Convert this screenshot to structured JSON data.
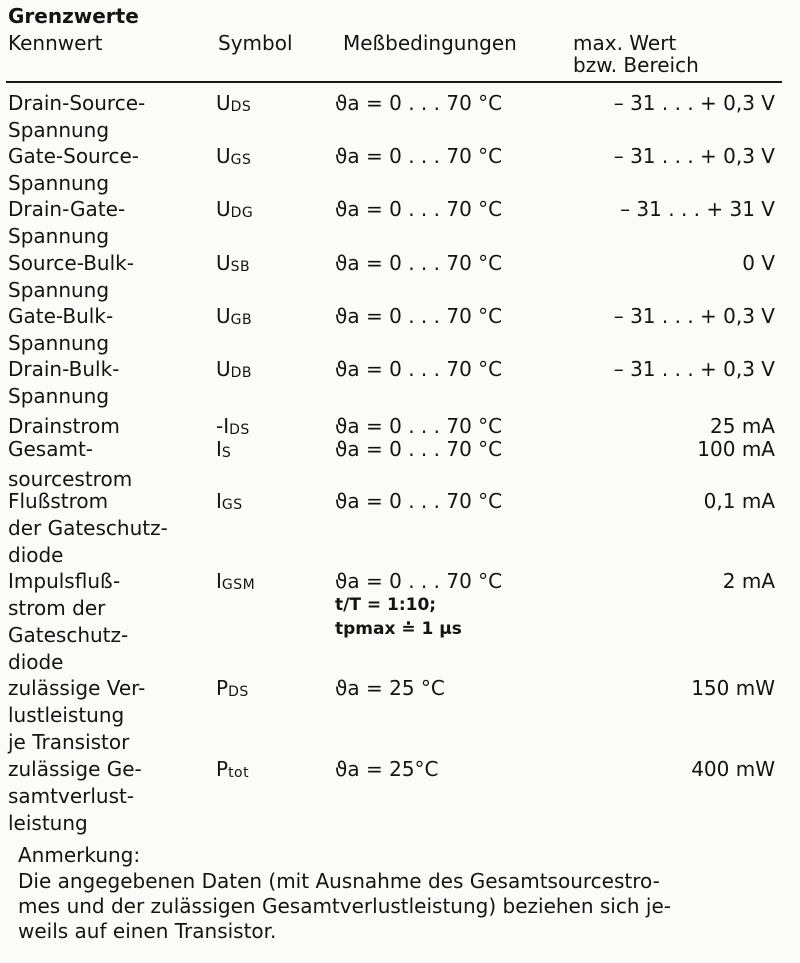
{
  "title": "Grenzwerte",
  "headers": {
    "kennwert": "Kennwert",
    "symbol": "Symbol",
    "conditions": "Meßbedingungen",
    "value_line1": "max. Wert",
    "value_line2": "bzw. Bereich"
  },
  "rows": [
    {
      "name": [
        "Drain-Source-",
        "Spannung"
      ],
      "symbol": "U",
      "symbol_sub": "DS",
      "cond": [
        "ϑa = 0 . . . 70 °C"
      ],
      "value": "– 31 . . . + 0,3 V"
    },
    {
      "name": [
        "Gate-Source-",
        "Spannung"
      ],
      "symbol": "U",
      "symbol_sub": "GS",
      "cond": [
        "ϑa = 0 . . . 70 °C"
      ],
      "value": "– 31 . . . + 0,3 V"
    },
    {
      "name": [
        "Drain-Gate-",
        "Spannung"
      ],
      "symbol": "U",
      "symbol_sub": "DG",
      "cond": [
        "ϑa = 0 . . . 70 °C"
      ],
      "value": "– 31 . . . + 31 V"
    },
    {
      "name": [
        "Source-Bulk-",
        "Spannung"
      ],
      "symbol": "U",
      "symbol_sub": "SB",
      "cond": [
        "ϑa = 0 . . . 70 °C"
      ],
      "value": "0 V"
    },
    {
      "name": [
        "Gate-Bulk-",
        "Spannung"
      ],
      "symbol": "U",
      "symbol_sub": "GB",
      "cond": [
        "ϑa = 0 . . . 70 °C"
      ],
      "value": "– 31 . . . + 0,3 V"
    },
    {
      "name": [
        "Drain-Bulk-",
        "Spannung"
      ],
      "symbol": "U",
      "symbol_sub": "DB",
      "cond": [
        "ϑa = 0 . . . 70 °C"
      ],
      "value": "– 31 . . . + 0,3 V"
    },
    {
      "name": [
        "Drainstrom"
      ],
      "symbol": "-I",
      "symbol_sub": "DS",
      "cond": [
        "ϑa = 0 . . . 70 °C"
      ],
      "value": "25 mA"
    },
    {
      "name": [
        "Gesamt-",
        "sourcestrom"
      ],
      "symbol": "I",
      "symbol_sub": "S",
      "cond": [
        "ϑa = 0 . . . 70 °C"
      ],
      "value": "100 mA"
    },
    {
      "name": [
        "Flußstrom",
        "der Gateschutz-",
        "diode"
      ],
      "symbol": "I",
      "symbol_sub": "GS",
      "cond": [
        "ϑa = 0 . . . 70 °C"
      ],
      "value": "0,1 mA"
    },
    {
      "name": [
        "Impulsfluß-",
        "strom der",
        "Gateschutz-",
        "diode"
      ],
      "symbol": "I",
      "symbol_sub": "GSM",
      "cond": [
        "ϑa = 0 . . . 70 °C",
        "t/T = 1:10;",
        "tpmax ≐ 1 µs"
      ],
      "value": "2 mA"
    },
    {
      "name": [
        "zulässige Ver-",
        "lustleistung",
        "je Transistor"
      ],
      "symbol": "P",
      "symbol_sub": "DS",
      "cond": [
        "ϑa = 25 °C"
      ],
      "value": "150 mW"
    },
    {
      "name": [
        "zulässige Ge-",
        "samtverlust-",
        "leistung"
      ],
      "symbol": "P",
      "symbol_sub": "tot",
      "cond": [
        "ϑa = 25°C"
      ],
      "value": "400 mW"
    }
  ],
  "note": {
    "label": "Anmerkung:",
    "lines": [
      "Die angegebenen Daten (mit Ausnahme des Gesamtsourcestro-",
      "mes und der zulässigen Gesamtverlustleistung) beziehen sich je-",
      "weils auf einen Transistor."
    ]
  }
}
